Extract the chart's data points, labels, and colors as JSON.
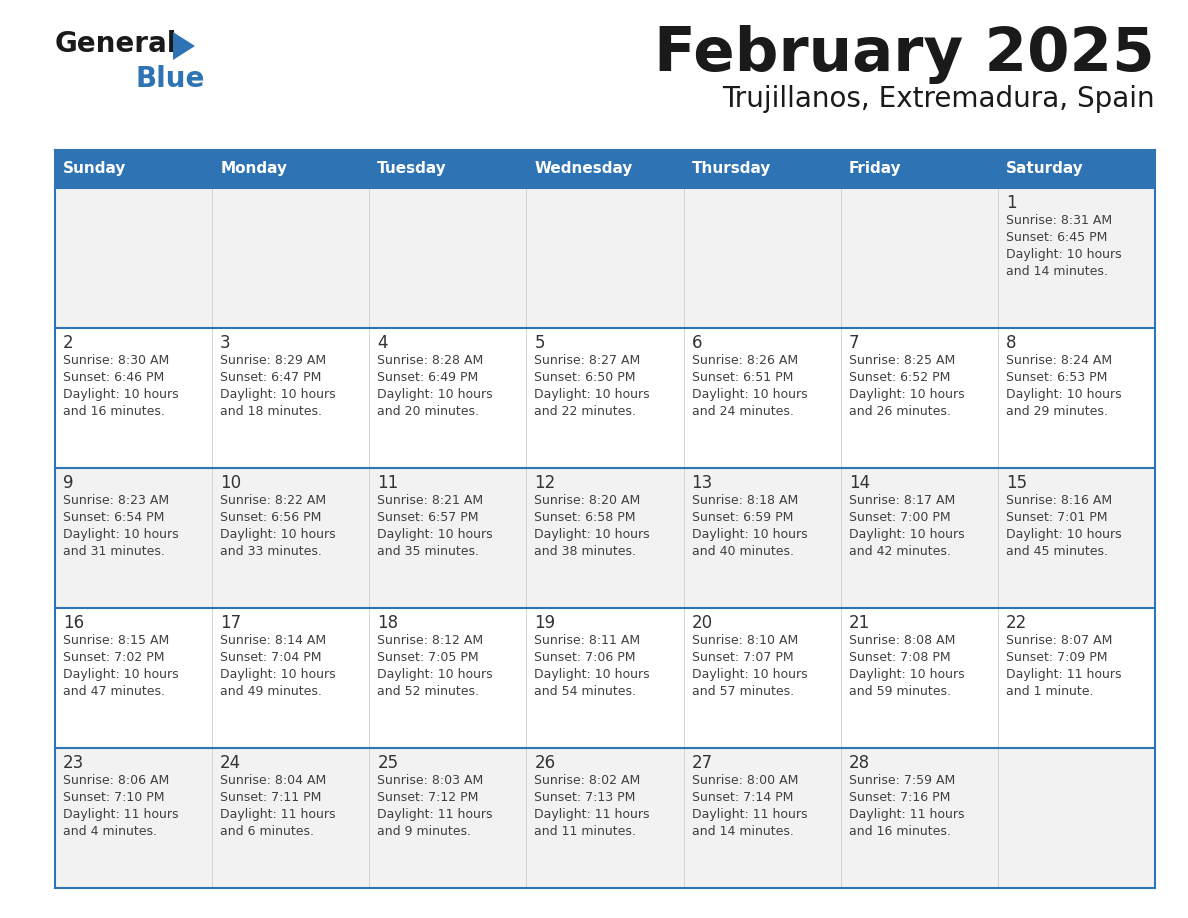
{
  "title": "February 2025",
  "subtitle": "Trujillanos, Extremadura, Spain",
  "days_of_week": [
    "Sunday",
    "Monday",
    "Tuesday",
    "Wednesday",
    "Thursday",
    "Friday",
    "Saturday"
  ],
  "header_bg": "#2E74B5",
  "header_text": "#FFFFFF",
  "cell_bg_even": "#FFFFFF",
  "cell_bg_odd": "#F2F2F2",
  "row_border_color": "#2E74B5",
  "col_border_color": "#CCCCCC",
  "title_color": "#1A1A1A",
  "subtitle_color": "#1A1A1A",
  "text_color": "#404040",
  "day_number_color": "#333333",
  "logo_general_color": "#1A1A1A",
  "logo_blue_color": "#2E74B5",
  "calendar_data": [
    [
      null,
      null,
      null,
      null,
      null,
      null,
      {
        "day": "1",
        "sunrise": "8:31 AM",
        "sunset": "6:45 PM",
        "daylight_l1": "Daylight: 10 hours",
        "daylight_l2": "and 14 minutes."
      }
    ],
    [
      {
        "day": "2",
        "sunrise": "8:30 AM",
        "sunset": "6:46 PM",
        "daylight_l1": "Daylight: 10 hours",
        "daylight_l2": "and 16 minutes."
      },
      {
        "day": "3",
        "sunrise": "8:29 AM",
        "sunset": "6:47 PM",
        "daylight_l1": "Daylight: 10 hours",
        "daylight_l2": "and 18 minutes."
      },
      {
        "day": "4",
        "sunrise": "8:28 AM",
        "sunset": "6:49 PM",
        "daylight_l1": "Daylight: 10 hours",
        "daylight_l2": "and 20 minutes."
      },
      {
        "day": "5",
        "sunrise": "8:27 AM",
        "sunset": "6:50 PM",
        "daylight_l1": "Daylight: 10 hours",
        "daylight_l2": "and 22 minutes."
      },
      {
        "day": "6",
        "sunrise": "8:26 AM",
        "sunset": "6:51 PM",
        "daylight_l1": "Daylight: 10 hours",
        "daylight_l2": "and 24 minutes."
      },
      {
        "day": "7",
        "sunrise": "8:25 AM",
        "sunset": "6:52 PM",
        "daylight_l1": "Daylight: 10 hours",
        "daylight_l2": "and 26 minutes."
      },
      {
        "day": "8",
        "sunrise": "8:24 AM",
        "sunset": "6:53 PM",
        "daylight_l1": "Daylight: 10 hours",
        "daylight_l2": "and 29 minutes."
      }
    ],
    [
      {
        "day": "9",
        "sunrise": "8:23 AM",
        "sunset": "6:54 PM",
        "daylight_l1": "Daylight: 10 hours",
        "daylight_l2": "and 31 minutes."
      },
      {
        "day": "10",
        "sunrise": "8:22 AM",
        "sunset": "6:56 PM",
        "daylight_l1": "Daylight: 10 hours",
        "daylight_l2": "and 33 minutes."
      },
      {
        "day": "11",
        "sunrise": "8:21 AM",
        "sunset": "6:57 PM",
        "daylight_l1": "Daylight: 10 hours",
        "daylight_l2": "and 35 minutes."
      },
      {
        "day": "12",
        "sunrise": "8:20 AM",
        "sunset": "6:58 PM",
        "daylight_l1": "Daylight: 10 hours",
        "daylight_l2": "and 38 minutes."
      },
      {
        "day": "13",
        "sunrise": "8:18 AM",
        "sunset": "6:59 PM",
        "daylight_l1": "Daylight: 10 hours",
        "daylight_l2": "and 40 minutes."
      },
      {
        "day": "14",
        "sunrise": "8:17 AM",
        "sunset": "7:00 PM",
        "daylight_l1": "Daylight: 10 hours",
        "daylight_l2": "and 42 minutes."
      },
      {
        "day": "15",
        "sunrise": "8:16 AM",
        "sunset": "7:01 PM",
        "daylight_l1": "Daylight: 10 hours",
        "daylight_l2": "and 45 minutes."
      }
    ],
    [
      {
        "day": "16",
        "sunrise": "8:15 AM",
        "sunset": "7:02 PM",
        "daylight_l1": "Daylight: 10 hours",
        "daylight_l2": "and 47 minutes."
      },
      {
        "day": "17",
        "sunrise": "8:14 AM",
        "sunset": "7:04 PM",
        "daylight_l1": "Daylight: 10 hours",
        "daylight_l2": "and 49 minutes."
      },
      {
        "day": "18",
        "sunrise": "8:12 AM",
        "sunset": "7:05 PM",
        "daylight_l1": "Daylight: 10 hours",
        "daylight_l2": "and 52 minutes."
      },
      {
        "day": "19",
        "sunrise": "8:11 AM",
        "sunset": "7:06 PM",
        "daylight_l1": "Daylight: 10 hours",
        "daylight_l2": "and 54 minutes."
      },
      {
        "day": "20",
        "sunrise": "8:10 AM",
        "sunset": "7:07 PM",
        "daylight_l1": "Daylight: 10 hours",
        "daylight_l2": "and 57 minutes."
      },
      {
        "day": "21",
        "sunrise": "8:08 AM",
        "sunset": "7:08 PM",
        "daylight_l1": "Daylight: 10 hours",
        "daylight_l2": "and 59 minutes."
      },
      {
        "day": "22",
        "sunrise": "8:07 AM",
        "sunset": "7:09 PM",
        "daylight_l1": "Daylight: 11 hours",
        "daylight_l2": "and 1 minute."
      }
    ],
    [
      {
        "day": "23",
        "sunrise": "8:06 AM",
        "sunset": "7:10 PM",
        "daylight_l1": "Daylight: 11 hours",
        "daylight_l2": "and 4 minutes."
      },
      {
        "day": "24",
        "sunrise": "8:04 AM",
        "sunset": "7:11 PM",
        "daylight_l1": "Daylight: 11 hours",
        "daylight_l2": "and 6 minutes."
      },
      {
        "day": "25",
        "sunrise": "8:03 AM",
        "sunset": "7:12 PM",
        "daylight_l1": "Daylight: 11 hours",
        "daylight_l2": "and 9 minutes."
      },
      {
        "day": "26",
        "sunrise": "8:02 AM",
        "sunset": "7:13 PM",
        "daylight_l1": "Daylight: 11 hours",
        "daylight_l2": "and 11 minutes."
      },
      {
        "day": "27",
        "sunrise": "8:00 AM",
        "sunset": "7:14 PM",
        "daylight_l1": "Daylight: 11 hours",
        "daylight_l2": "and 14 minutes."
      },
      {
        "day": "28",
        "sunrise": "7:59 AM",
        "sunset": "7:16 PM",
        "daylight_l1": "Daylight: 11 hours",
        "daylight_l2": "and 16 minutes."
      },
      null
    ]
  ]
}
